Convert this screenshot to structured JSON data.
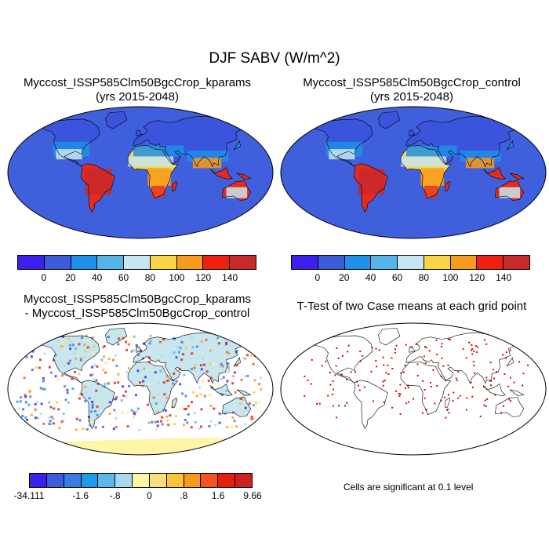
{
  "title": "DJF SABV (W/m^2)",
  "panels": [
    {
      "title1": "Myccost_ISSP585Clm50BgcCrop_kparams",
      "title2": "(yrs 2015-2048)"
    },
    {
      "title1": "Myccost_ISSP585Clm50BgcCrop_control",
      "title2": "(yrs 2015-2048)"
    },
    {
      "title1": "Myccost_ISSP585Clm50BgcCrop_kparams",
      "title2": "- Myccost_ISSP585Clm50BgcCrop_control"
    },
    {
      "title1": "T-Test of two Case means at each grid point",
      "title2": ""
    }
  ],
  "colorbar_abs": {
    "colors": [
      "#3b20f0",
      "#3d5cdc",
      "#1f8fe8",
      "#55b5e8",
      "#c6e6f0",
      "#fbd445",
      "#f89a1c",
      "#f01f10",
      "#c8292a"
    ],
    "labels": [
      "0",
      "20",
      "40",
      "60",
      "80",
      "100",
      "120",
      "140"
    ]
  },
  "colorbar_diff": {
    "colors": [
      "#3b20f0",
      "#3d5cdc",
      "#3c7be0",
      "#1f9ae8",
      "#5cb8e6",
      "#a8d8ec",
      "#fdf6a6",
      "#fbe07a",
      "#fbc23c",
      "#f89a1c",
      "#f2561c",
      "#e51e10",
      "#cc2222"
    ],
    "labels": [
      "-34.111",
      "-1.6",
      "-.8",
      "0",
      ".8",
      "1.6",
      "9.66"
    ]
  },
  "significance_note": "Cells are significant at 0.1 level",
  "map_colors": {
    "ocean_abs": "#3f5fdc",
    "high_lat": "#3a55dc",
    "mid": "#1f8fe8",
    "light": "#c6e6f0",
    "yellow": "#fbd445",
    "orange": "#f89a1c",
    "red": "#e52b1b",
    "darkred": "#c8292a",
    "diff_land": "#c8e6ee",
    "diff_yellow": "#fdf6a6",
    "sig_red": "#e00000"
  }
}
